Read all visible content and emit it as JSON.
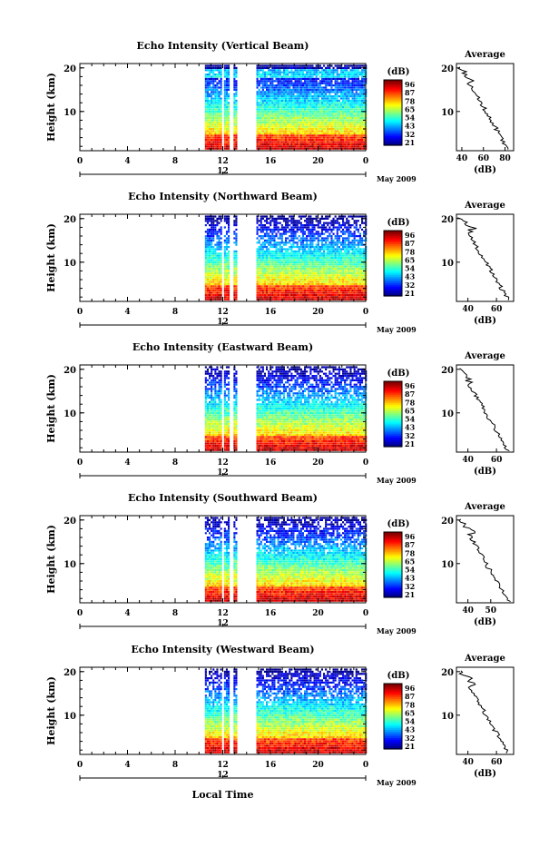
{
  "figure": {
    "xlabel": "Local Time",
    "colorbar_label": "(dB)",
    "colorbar_ticks": [
      "96",
      "87",
      "78",
      "65",
      "54",
      "43",
      "32",
      "21"
    ],
    "avg_title": "Average",
    "avg_xlabel": "(dB)",
    "ylabel": "Height (km)",
    "x_ticks": [
      "0",
      "4",
      "8",
      "12",
      "16",
      "20",
      "0"
    ],
    "y_ticks": [
      "20",
      "10"
    ],
    "date_label": "May 2009",
    "day_label": "12"
  },
  "chart_data": [
    {
      "type": "heatmap",
      "title": "Echo Intensity (Vertical Beam)",
      "xlim": [
        0,
        24
      ],
      "ylim": [
        1,
        21
      ],
      "data_gaps_hours": [
        [
          11.9,
          12.1
        ],
        [
          12.5,
          12.75
        ],
        [
          13.2,
          14.8
        ]
      ],
      "data_start_hour": 10.5,
      "avg_xticks": [
        "40",
        "60",
        "80"
      ],
      "avg_xlim": [
        35,
        88
      ]
    },
    {
      "type": "heatmap",
      "title": "Echo Intensity (Northward Beam)",
      "xlim": [
        0,
        24
      ],
      "ylim": [
        1,
        21
      ],
      "data_gaps_hours": [
        [
          11.9,
          12.1
        ],
        [
          12.5,
          12.75
        ],
        [
          13.2,
          14.8
        ]
      ],
      "data_start_hour": 10.5,
      "avg_xticks": [
        "40",
        "60"
      ],
      "avg_xlim": [
        32,
        72
      ]
    },
    {
      "type": "heatmap",
      "title": "Echo Intensity (Eastward Beam)",
      "xlim": [
        0,
        24
      ],
      "ylim": [
        1,
        21
      ],
      "data_gaps_hours": [
        [
          11.9,
          12.1
        ],
        [
          12.5,
          12.75
        ],
        [
          13.2,
          14.8
        ]
      ],
      "data_start_hour": 10.5,
      "avg_xticks": [
        "40",
        "60"
      ],
      "avg_xlim": [
        32,
        72
      ]
    },
    {
      "type": "heatmap",
      "title": "Echo Intensity (Southward Beam)",
      "xlim": [
        0,
        24
      ],
      "ylim": [
        1,
        21
      ],
      "data_gaps_hours": [
        [
          11.9,
          12.1
        ],
        [
          12.5,
          12.75
        ],
        [
          13.2,
          14.8
        ]
      ],
      "data_start_hour": 10.5,
      "avg_xticks": [
        "40",
        "50"
      ],
      "avg_xlim": [
        35,
        60
      ]
    },
    {
      "type": "heatmap",
      "title": "Echo Intensity (Westward Beam)",
      "xlim": [
        0,
        24
      ],
      "ylim": [
        1,
        21
      ],
      "data_gaps_hours": [
        [
          11.9,
          12.1
        ],
        [
          12.5,
          12.75
        ],
        [
          13.2,
          14.8
        ]
      ],
      "data_start_hour": 10.5,
      "avg_xticks": [
        "40",
        "60"
      ],
      "avg_xlim": [
        32,
        72
      ]
    }
  ]
}
